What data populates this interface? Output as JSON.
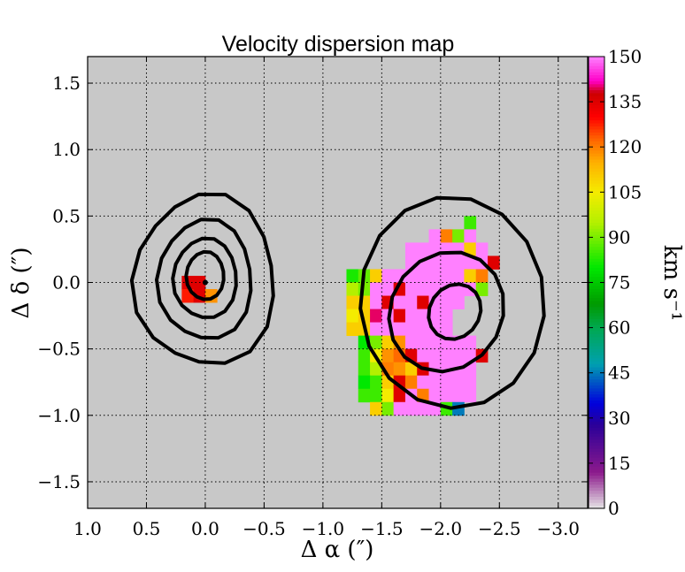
{
  "chart_data": {
    "type": "heatmap",
    "title": "Velocity dispersion map",
    "xlabel": "Δ α  (″)",
    "ylabel": "Δ δ  (″)",
    "colorbar_label": "km s⁻¹",
    "xlim": [
      1.0,
      -3.25
    ],
    "ylim": [
      -1.7,
      1.7
    ],
    "x_ticks": [
      1.0,
      0.5,
      0.0,
      -0.5,
      -1.0,
      -1.5,
      -2.0,
      -2.5,
      -3.0
    ],
    "x_tick_labels": [
      "1.0",
      "0.5",
      "0.0",
      "−0.5",
      "−1.0",
      "−1.5",
      "−2.0",
      "−2.5",
      "−3.0"
    ],
    "y_ticks": [
      1.5,
      1.0,
      0.5,
      0.0,
      -0.5,
      -1.0,
      -1.5
    ],
    "y_tick_labels": [
      "1.5",
      "1.0",
      "0.5",
      "0.0",
      "−0.5",
      "−1.0",
      "−1.5"
    ],
    "grid": true,
    "pixel_size": 0.1,
    "cbar_range": [
      0,
      150
    ],
    "cbar_ticks": [
      0,
      15,
      30,
      45,
      60,
      75,
      90,
      105,
      120,
      135,
      150
    ],
    "background_color": "#c8c8c8",
    "colormap": [
      {
        "v": 0,
        "c": "#e6e6e6"
      },
      {
        "v": 12,
        "c": "#8c1a8c"
      },
      {
        "v": 28,
        "c": "#2a0099"
      },
      {
        "v": 35,
        "c": "#0000dd"
      },
      {
        "v": 48,
        "c": "#00a0b0"
      },
      {
        "v": 60,
        "c": "#00a850"
      },
      {
        "v": 68,
        "c": "#009a00"
      },
      {
        "v": 80,
        "c": "#00e800"
      },
      {
        "v": 95,
        "c": "#b4f000"
      },
      {
        "v": 105,
        "c": "#f4ec00"
      },
      {
        "v": 115,
        "c": "#ffb000"
      },
      {
        "v": 123,
        "c": "#ff6000"
      },
      {
        "v": 130,
        "c": "#ff0000"
      },
      {
        "v": 138,
        "c": "#cc0000"
      },
      {
        "v": 142,
        "c": "#ff00c8"
      },
      {
        "v": 150,
        "c": "#ff80ff"
      }
    ],
    "pixel_rows": [
      {
        "y": 0.45,
        "x0": -2.25,
        "values": [
          85
        ]
      },
      {
        "y": 0.35,
        "x0": -1.95,
        "values": [
          150,
          120,
          90,
          150
        ]
      },
      {
        "y": 0.25,
        "x0": -1.75,
        "values": [
          150,
          150,
          150,
          150,
          150,
          110,
          150
        ]
      },
      {
        "y": 0.15,
        "x0": -1.75,
        "values": [
          150,
          150,
          150,
          150,
          150,
          150,
          150,
          135
        ]
      },
      {
        "y": 0.05,
        "x0": -1.25,
        "values": [
          82,
          88,
          110,
          150,
          150,
          150,
          150,
          150,
          150,
          150,
          110,
          120
        ]
      },
      {
        "y": 0.0,
        "x0": 0.15,
        "values": [
          135,
          135
        ]
      },
      {
        "y": -0.05,
        "x0": -1.25,
        "values": [
          95,
          90,
          150,
          150,
          135,
          150,
          150,
          150,
          150,
          150,
          150,
          90
        ]
      },
      {
        "y": -0.1,
        "x0": 0.15,
        "values": [
          128,
          135,
          118
        ]
      },
      {
        "y": -0.15,
        "x0": -1.25,
        "values": [
          110,
          110,
          150,
          135,
          150,
          150,
          135,
          150,
          150,
          150
        ]
      },
      {
        "y": -0.25,
        "x0": -1.25,
        "values": [
          105,
          110,
          140,
          150,
          135,
          150,
          150,
          150,
          150
        ]
      },
      {
        "y": -0.35,
        "x0": -1.25,
        "values": [
          110,
          110,
          150,
          150,
          150,
          150,
          150,
          150,
          150
        ]
      },
      {
        "y": -0.45,
        "x0": -1.35,
        "values": [
          80,
          90,
          110,
          118,
          150,
          150,
          150,
          150,
          150,
          150
        ]
      },
      {
        "y": -0.55,
        "x0": -1.35,
        "values": [
          85,
          105,
          118,
          122,
          135,
          150,
          150,
          150,
          150,
          150,
          135
        ]
      },
      {
        "y": -0.65,
        "x0": -1.35,
        "values": [
          85,
          95,
          120,
          118,
          110,
          135,
          150,
          150,
          150,
          150
        ]
      },
      {
        "y": -0.75,
        "x0": -1.35,
        "values": [
          80,
          85,
          110,
          135,
          120,
          150,
          150,
          150,
          150,
          150
        ]
      },
      {
        "y": -0.85,
        "x0": -1.35,
        "values": [
          85,
          85,
          105,
          135,
          150,
          120,
          150,
          150,
          150,
          150
        ]
      },
      {
        "y": -0.95,
        "x0": -1.45,
        "values": [
          110,
          90,
          150,
          150,
          150,
          150,
          85,
          45
        ]
      }
    ],
    "contours": [
      {
        "cx": 0.0,
        "cy": 0.015,
        "rx": 0.6,
        "ry": 0.64,
        "lobe": 0.05,
        "rot": 0
      },
      {
        "cx": 0.0,
        "cy": 0.02,
        "rx": 0.4,
        "ry": 0.45,
        "lobe": 0.04,
        "rot": 0
      },
      {
        "cx": 0.0,
        "cy": 0.03,
        "rx": 0.27,
        "ry": 0.3,
        "lobe": 0.03,
        "rot": 0
      },
      {
        "cx": 0.0,
        "cy": 0.05,
        "rx": 0.16,
        "ry": 0.18,
        "lobe": 0.02,
        "rot": 0
      },
      {
        "cx": -2.1,
        "cy": -0.15,
        "rx": 0.78,
        "ry": 0.8,
        "lobe": 0.0,
        "rot": -25
      },
      {
        "cx": -2.05,
        "cy": -0.22,
        "rx": 0.5,
        "ry": 0.44,
        "lobe": 0.0,
        "rot": -25
      },
      {
        "cx": -2.12,
        "cy": -0.22,
        "rx": 0.23,
        "ry": 0.2,
        "lobe": 0.0,
        "rot": -30
      }
    ]
  }
}
